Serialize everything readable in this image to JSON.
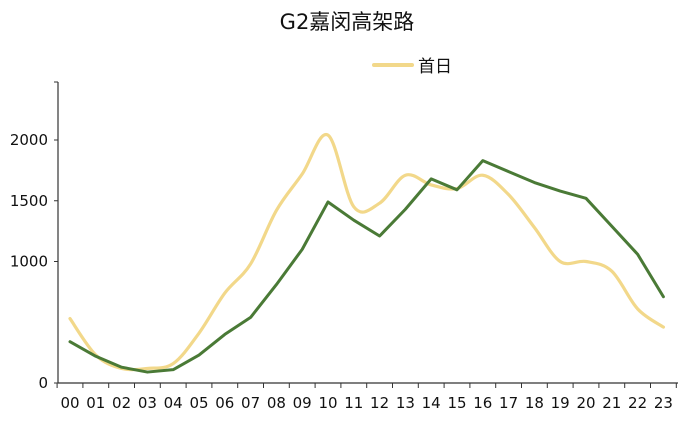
{
  "chart_data": {
    "type": "line",
    "title": "G2嘉闵高架路",
    "xlabel": "",
    "ylabel": "",
    "categories": [
      "00",
      "01",
      "02",
      "03",
      "04",
      "05",
      "06",
      "07",
      "08",
      "09",
      "10",
      "11",
      "12",
      "13",
      "14",
      "15",
      "16",
      "17",
      "18",
      "19",
      "20",
      "21",
      "22",
      "23"
    ],
    "ylim": [
      0,
      2500
    ],
    "yticks": [
      {
        "value": 0,
        "label": "0"
      },
      {
        "value": 1000,
        "label": "1000"
      },
      {
        "value": 1500,
        "label": "1500"
      },
      {
        "value": 2000,
        "label": "2000"
      }
    ],
    "grid": false,
    "legend_position": "top-center",
    "series": [
      {
        "name": "首日",
        "color": "#f2d88a",
        "smooth": true,
        "values": [
          530,
          230,
          120,
          120,
          160,
          410,
          740,
          980,
          1420,
          1720,
          2040,
          1450,
          1480,
          1710,
          1630,
          1600,
          1710,
          1550,
          1280,
          1000,
          1000,
          920,
          610,
          460
        ]
      },
      {
        "color": "#4a7a36",
        "smooth": false,
        "values": [
          340,
          220,
          130,
          90,
          110,
          230,
          400,
          540,
          810,
          1100,
          1490,
          1340,
          1210,
          1430,
          1680,
          1590,
          1830,
          1740,
          1650,
          1580,
          1520,
          1290,
          1060,
          710
        ]
      }
    ]
  }
}
